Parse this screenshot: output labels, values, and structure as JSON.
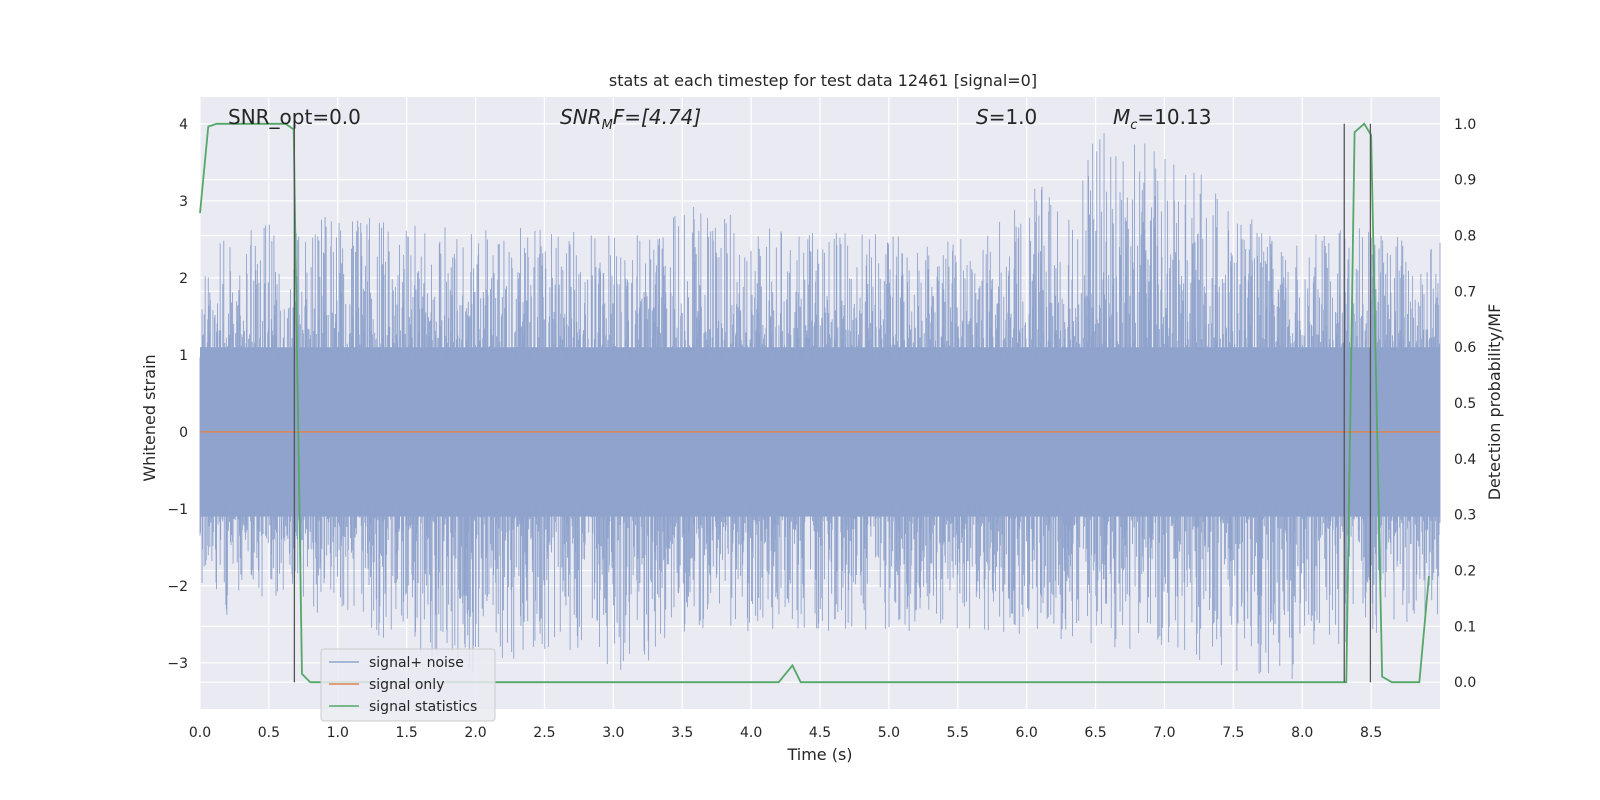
{
  "chart_data": {
    "type": "line",
    "title": "stats at each timestep for test data 12461 [signal=0]",
    "xlabel": "Time (s)",
    "ylabel": "Whitened strain",
    "ylabel_right": "Detection probability/MF",
    "xlim": [
      0.0,
      9.0
    ],
    "ylim": [
      -3.6,
      4.35
    ],
    "ylim_right": [
      -0.048,
      1.048
    ],
    "x_ticks": [
      "0.0",
      "0.5",
      "1.0",
      "1.5",
      "2.0",
      "2.5",
      "3.0",
      "3.5",
      "4.0",
      "4.5",
      "5.0",
      "5.5",
      "6.0",
      "6.5",
      "7.0",
      "7.5",
      "8.0",
      "8.5"
    ],
    "y_ticks": [
      "4",
      "3",
      "2",
      "1",
      "0",
      "−1",
      "−2",
      "−3"
    ],
    "y_ticks_right": [
      "1.0",
      "0.9",
      "0.8",
      "0.7",
      "0.6",
      "0.5",
      "0.4",
      "0.3",
      "0.2",
      "0.1",
      "0.0"
    ],
    "grid": true,
    "legend_position": "lower-left",
    "annotations": {
      "snr_opt": "SNR_opt=0.0",
      "snr_mf_prefix": "SNR",
      "snr_mf_sub": "M",
      "snr_mf_suffix": "F=[4.74]",
      "s_symbol": "S",
      "s_value": "=1.0",
      "mc_symbol": "M",
      "mc_sub": "c",
      "mc_value": "=10.13"
    },
    "series": [
      {
        "name": "signal+ noise",
        "color": "#8fa3cc",
        "envelope": {
          "x": [
            0.0,
            0.15,
            0.29,
            0.58,
            1.1,
            1.9,
            2.6,
            3.2,
            3.5,
            4.3,
            5.7,
            6.6,
            7.35,
            7.85,
            8.3,
            9.0
          ],
          "upper": [
            2.2,
            2.6,
            2.6,
            2.8,
            2.8,
            2.7,
            2.7,
            2.6,
            3.0,
            2.6,
            2.6,
            4.0,
            3.3,
            2.4,
            2.7,
            2.6
          ],
          "lower": [
            -1.9,
            -2.6,
            -2.1,
            -2.2,
            -2.5,
            -3.2,
            -2.8,
            -3.2,
            -2.6,
            -2.6,
            -2.6,
            -2.8,
            -3.0,
            -3.3,
            -2.8,
            -2.4
          ]
        }
      },
      {
        "name": "signal only",
        "color": "#dd8452",
        "x": [
          0.0,
          9.0
        ],
        "y": [
          0.0,
          0.0
        ]
      },
      {
        "name": "signal statistics",
        "color": "#55a868",
        "axis": "right",
        "x": [
          0.0,
          0.06,
          0.12,
          0.62,
          0.68,
          0.74,
          0.8,
          0.9,
          4.2,
          4.3,
          4.36,
          8.25,
          8.32,
          8.38,
          8.45,
          8.5,
          8.58,
          8.65,
          8.85,
          8.92
        ],
        "y": [
          0.84,
          0.995,
          1.0,
          1.0,
          0.99,
          0.015,
          0.0,
          0.0,
          0.0,
          0.03,
          0.0,
          0.0,
          0.0,
          0.985,
          1.0,
          0.98,
          0.01,
          0.0,
          0.0,
          0.19
        ]
      }
    ],
    "vertical_lines": [
      0.685,
      8.305,
      8.495
    ]
  }
}
